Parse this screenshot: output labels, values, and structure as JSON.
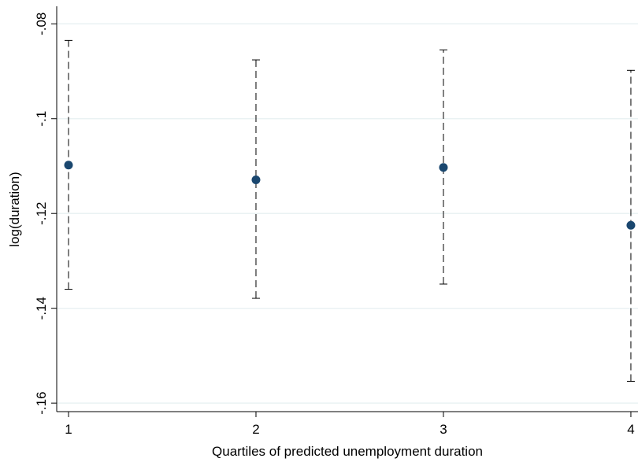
{
  "chart_data": {
    "type": "errorbar",
    "x_label": "Quartiles of predicted unemployment duration",
    "y_label": "log(duration)",
    "x": [
      1,
      2,
      3,
      4
    ],
    "values": [
      -0.1098,
      -0.1129,
      -0.1103,
      -0.1225
    ],
    "lower": [
      -0.136,
      -0.1379,
      -0.1349,
      -0.1554
    ],
    "upper": [
      -0.0835,
      -0.0876,
      -0.0855,
      -0.0898
    ],
    "color": "#1a476f",
    "xlim": [
      0.937,
      4.038
    ],
    "ylim": [
      -0.1618,
      -0.0763
    ],
    "xticks": [
      1,
      2,
      3,
      4
    ],
    "yticks": [
      {
        "value": -0.16,
        "label": "-.16"
      },
      {
        "value": -0.14,
        "label": "-.14"
      },
      {
        "value": -0.12,
        "label": "-.12"
      },
      {
        "value": -0.1,
        "label": "-.1"
      },
      {
        "value": -0.08,
        "label": "-.08"
      }
    ],
    "grid": true
  }
}
